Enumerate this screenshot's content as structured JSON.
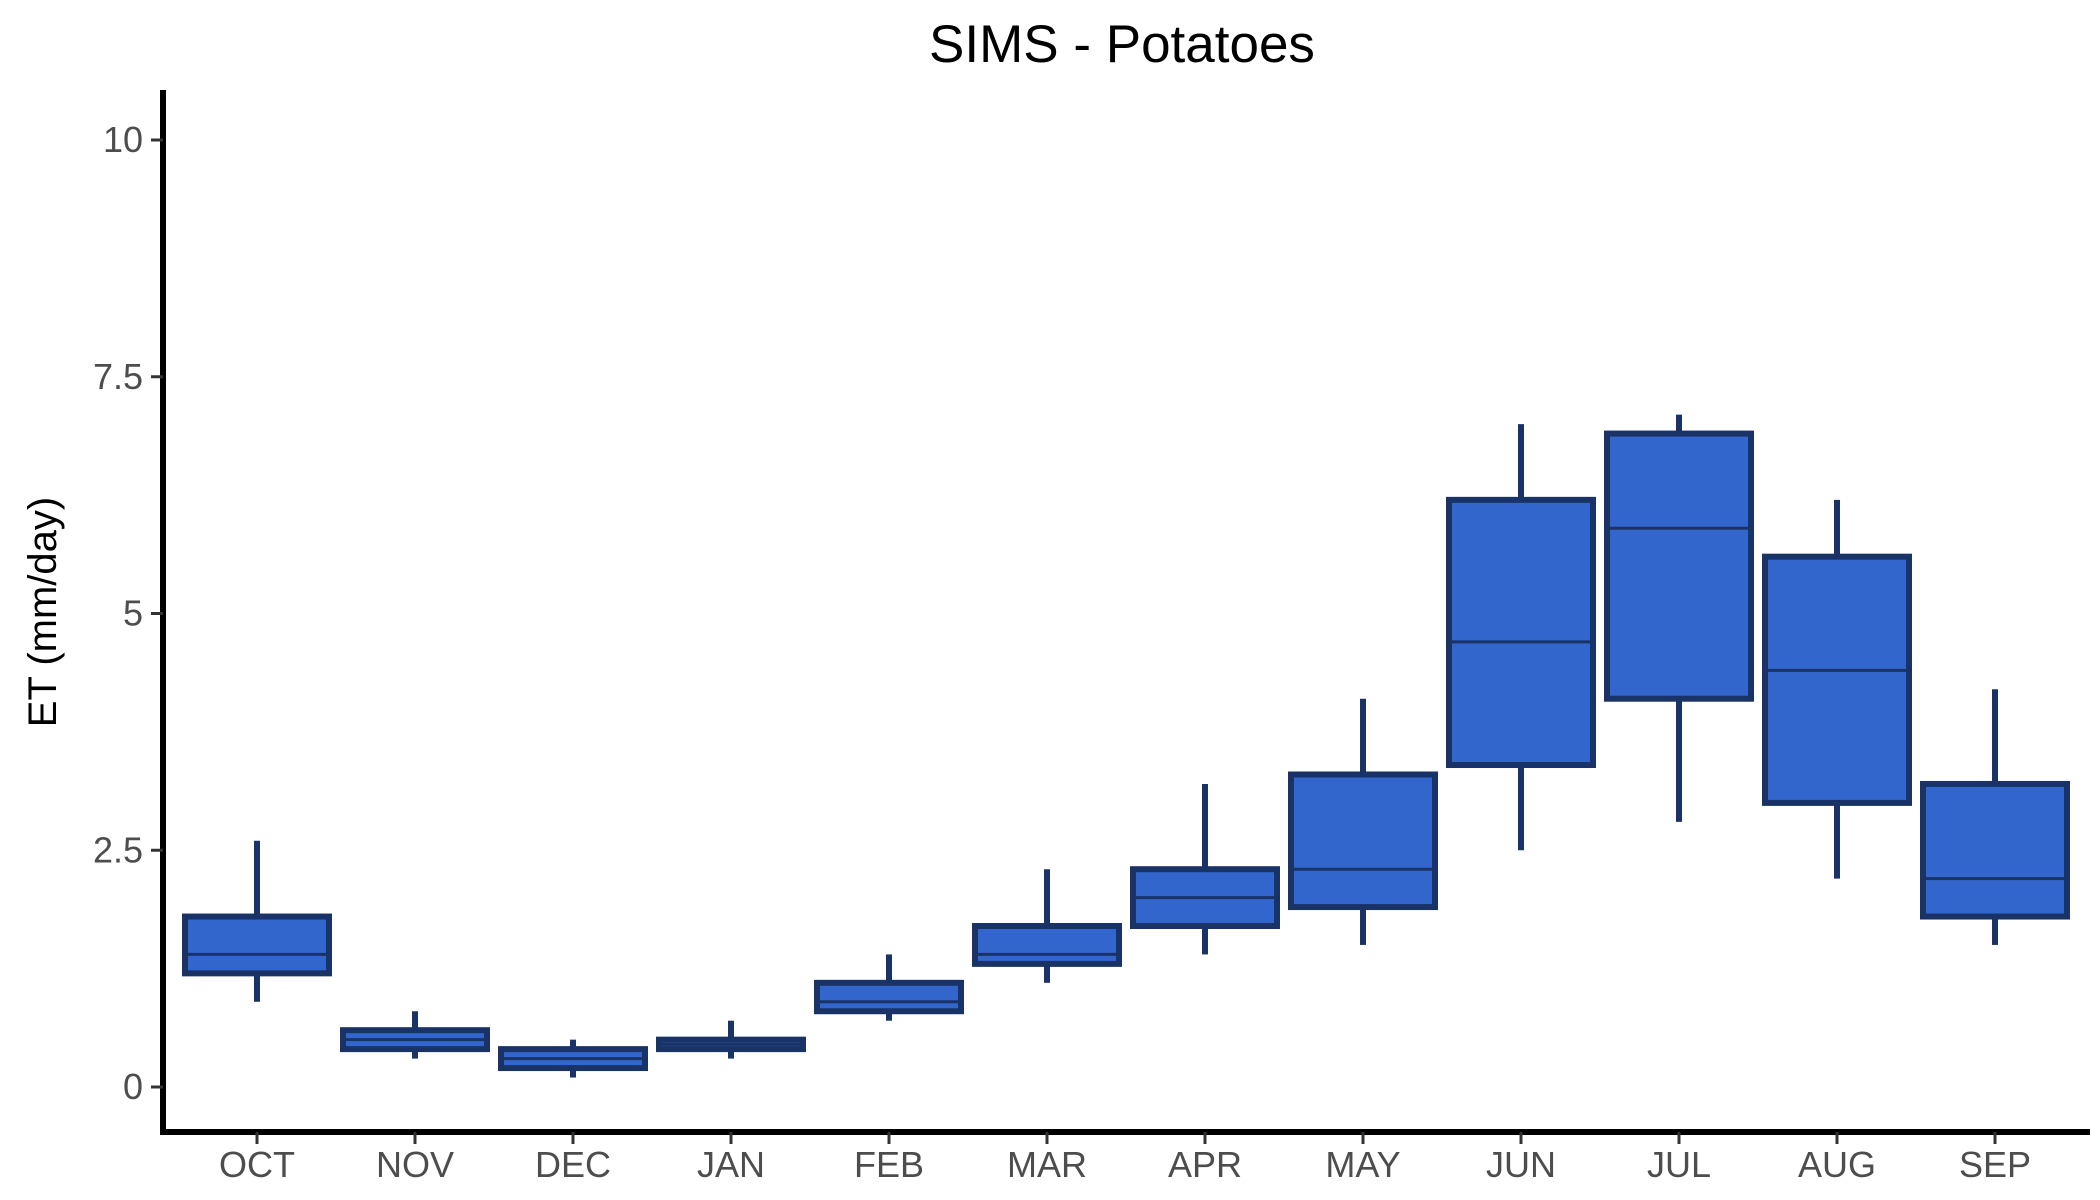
{
  "chart_data": {
    "type": "boxplot",
    "title": "SIMS - Potatoes",
    "xlabel": "",
    "ylabel": "ET (mm/day)",
    "ylim": [
      -0.5,
      10.5
    ],
    "yticks": [
      0,
      2.5,
      5,
      7.5,
      10
    ],
    "ytick_labels": [
      "0",
      "2.5",
      "5",
      "7.5",
      "10"
    ],
    "grid": false,
    "legend": "none",
    "colors": {
      "box_fill": "#3366cc",
      "box_stroke": "#1a3366",
      "axis": "#000000",
      "tick_label": "#4d4d4d"
    },
    "categories": [
      "OCT",
      "NOV",
      "DEC",
      "JAN",
      "FEB",
      "MAR",
      "APR",
      "MAY",
      "JUN",
      "JUL",
      "AUG",
      "SEP"
    ],
    "boxes": [
      {
        "low": 0.9,
        "q1": 1.2,
        "median": 1.4,
        "q3": 1.8,
        "high": 2.6
      },
      {
        "low": 0.3,
        "q1": 0.4,
        "median": 0.5,
        "q3": 0.6,
        "high": 0.8
      },
      {
        "low": 0.1,
        "q1": 0.2,
        "median": 0.3,
        "q3": 0.4,
        "high": 0.5
      },
      {
        "low": 0.3,
        "q1": 0.4,
        "median": 0.45,
        "q3": 0.5,
        "high": 0.7
      },
      {
        "low": 0.7,
        "q1": 0.8,
        "median": 0.9,
        "q3": 1.1,
        "high": 1.4
      },
      {
        "low": 1.1,
        "q1": 1.3,
        "median": 1.4,
        "q3": 1.7,
        "high": 2.3
      },
      {
        "low": 1.4,
        "q1": 1.7,
        "median": 2.0,
        "q3": 2.3,
        "high": 3.2
      },
      {
        "low": 1.5,
        "q1": 1.9,
        "median": 2.3,
        "q3": 3.3,
        "high": 4.1
      },
      {
        "low": 2.5,
        "q1": 3.4,
        "median": 4.7,
        "q3": 6.2,
        "high": 7.0
      },
      {
        "low": 2.8,
        "q1": 4.1,
        "median": 5.9,
        "q3": 6.9,
        "high": 7.1
      },
      {
        "low": 2.2,
        "q1": 3.0,
        "median": 4.4,
        "q3": 5.6,
        "high": 6.2
      },
      {
        "low": 1.5,
        "q1": 1.8,
        "median": 2.2,
        "q3": 3.2,
        "high": 4.2
      }
    ]
  }
}
